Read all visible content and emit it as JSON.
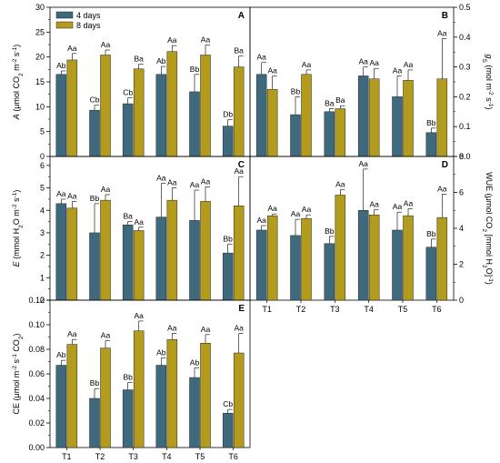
{
  "legend": [
    {
      "name": "4 days",
      "color": "#3F6A7E"
    },
    {
      "name": "8 days",
      "color": "#B39B1E"
    }
  ],
  "chart_data": [
    {
      "panel": "A",
      "type": "bar",
      "categories": [
        "T1",
        "T2",
        "T3",
        "T4",
        "T5",
        "T6"
      ],
      "ylabel": "A (μmol CO2 m-2 s-1)",
      "ylim": [
        0,
        30
      ],
      "yticks": [
        "0",
        "5",
        "10",
        "15",
        "20",
        "25",
        "30"
      ],
      "yaxis_side": "left",
      "series": [
        {
          "name": "4 days",
          "values": [
            16.5,
            9.3,
            10.6,
            16.5,
            13.0,
            6.1
          ],
          "errors": [
            0.7,
            1.0,
            1.2,
            1.6,
            3.5,
            1.3
          ],
          "labels": [
            "Ab",
            "Cb",
            "Cb",
            "Ab",
            "Bb",
            "Db"
          ]
        },
        {
          "name": "8 days",
          "values": [
            19.4,
            20.4,
            17.6,
            21.1,
            20.4,
            18.0
          ],
          "errors": [
            1.3,
            1.0,
            1.0,
            1.2,
            2.0,
            2.2
          ],
          "labels": [
            "Aa",
            "Aa",
            "Ba",
            "Aa",
            "Aa",
            "Ba"
          ]
        }
      ]
    },
    {
      "panel": "B",
      "type": "bar",
      "categories": [
        "T1",
        "T2",
        "T3",
        "T4",
        "T5",
        "T6"
      ],
      "ylabel": "gS (mol m-2 s-1)",
      "ylim": [
        0,
        0.5
      ],
      "yticks": [
        "0.0",
        "0.1",
        "0.2",
        "0.3",
        "0.4",
        "0.5"
      ],
      "yaxis_side": "right",
      "series": [
        {
          "name": "4 days",
          "values": [
            0.275,
            0.14,
            0.15,
            0.27,
            0.2,
            0.08
          ],
          "errors": [
            0.04,
            0.06,
            0.01,
            0.03,
            0.07,
            0.015
          ],
          "labels": [
            "Aa",
            "Bb",
            "Ba",
            "Aa",
            "Aa",
            "Bb"
          ]
        },
        {
          "name": "8 days",
          "values": [
            0.225,
            0.275,
            0.16,
            0.26,
            0.255,
            0.26
          ],
          "errors": [
            0.045,
            0.015,
            0.01,
            0.035,
            0.035,
            0.135
          ],
          "labels": [
            "Aa",
            "Aa",
            "Ba",
            "Aa",
            "Aa",
            "Aa"
          ]
        }
      ]
    },
    {
      "panel": "C",
      "type": "bar",
      "categories": [
        "T1",
        "T2",
        "T3",
        "T4",
        "T5",
        "T6"
      ],
      "ylabel": "E (mmol H2O m-2 s-1)",
      "ylim": [
        0,
        6.4
      ],
      "yticks": [
        "0",
        "1",
        "2",
        "3",
        "4",
        "5",
        "6"
      ],
      "yaxis_side": "left",
      "series": [
        {
          "name": "4 days",
          "values": [
            4.3,
            3.0,
            3.35,
            3.7,
            3.55,
            2.1
          ],
          "errors": [
            0.2,
            1.3,
            0.15,
            1.5,
            1.35,
            0.4
          ],
          "labels": [
            "Aa",
            "Bb",
            "Ba",
            "Aa",
            "Aa",
            "Bb"
          ]
        },
        {
          "name": "8 days",
          "values": [
            4.1,
            4.45,
            3.1,
            4.45,
            4.4,
            4.2
          ],
          "errors": [
            0.3,
            0.25,
            0.15,
            0.55,
            0.65,
            1.3
          ],
          "labels": [
            "Aa",
            "Aa",
            "Aa",
            "Aa",
            "Aa",
            "Aa"
          ]
        }
      ]
    },
    {
      "panel": "D",
      "type": "bar",
      "categories": [
        "T1",
        "T2",
        "T3",
        "T4",
        "T5",
        "T6"
      ],
      "xticklabels": [
        "T1",
        "T2",
        "T3",
        "T4",
        "T5",
        "T6"
      ],
      "ylabel": "WUE (μmol CO2 [mmol H2O]-1)",
      "ylim": [
        0,
        8
      ],
      "yticks": [
        "0",
        "2",
        "4",
        "6",
        "8"
      ],
      "yaxis_side": "right",
      "series": [
        {
          "name": "4 days",
          "values": [
            3.9,
            3.6,
            3.15,
            5.0,
            3.9,
            2.95
          ],
          "errors": [
            0.25,
            0.9,
            0.4,
            2.3,
            1.0,
            0.45
          ],
          "labels": [
            "Aa",
            "Aa",
            "Bb",
            "Aa",
            "Aa",
            "Bb"
          ]
        },
        {
          "name": "8 days",
          "values": [
            4.7,
            4.55,
            5.85,
            4.75,
            4.7,
            4.6
          ],
          "errors": [
            0.1,
            0.2,
            0.3,
            0.3,
            0.4,
            1.3
          ],
          "labels": [
            "Aa",
            "Aa",
            "Aa",
            "Aa",
            "Aa",
            "Aa"
          ]
        }
      ]
    },
    {
      "panel": "E",
      "type": "bar",
      "categories": [
        "T1",
        "T2",
        "T3",
        "T4",
        "T5",
        "T6"
      ],
      "xticklabels": [
        "T1",
        "T2",
        "T3",
        "T4",
        "T5",
        "T6"
      ],
      "ylabel": "CE (μmol m-2 s-1 CO2)",
      "ylim": [
        0,
        0.12
      ],
      "yticks": [
        "0.00",
        "0.02",
        "0.04",
        "0.06",
        "0.08",
        "0.10",
        "0.12"
      ],
      "yaxis_side": "left",
      "series": [
        {
          "name": "4 days",
          "values": [
            0.067,
            0.04,
            0.047,
            0.067,
            0.057,
            0.028
          ],
          "errors": [
            0.004,
            0.008,
            0.006,
            0.006,
            0.008,
            0.003
          ],
          "labels": [
            "Ab",
            "Bb",
            "Bb",
            "Ab",
            "Ab",
            "Cb"
          ]
        },
        {
          "name": "8 days",
          "values": [
            0.084,
            0.081,
            0.095,
            0.088,
            0.085,
            0.077
          ],
          "errors": [
            0.004,
            0.006,
            0.008,
            0.005,
            0.007,
            0.016
          ],
          "labels": [
            "Aa",
            "Aa",
            "Aa",
            "Aa",
            "Aa",
            "Aa"
          ]
        }
      ]
    }
  ]
}
